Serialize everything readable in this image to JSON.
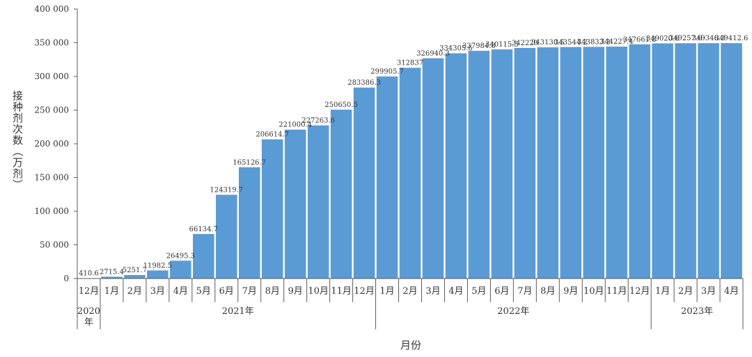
{
  "chart_data": {
    "type": "bar",
    "title": "",
    "ylabel": "接种剂次数（万剂）",
    "xlabel": "月份",
    "ylim": [
      0,
      400000
    ],
    "yticks": [
      "0",
      "50 000",
      "100 000",
      "150 000",
      "200 000",
      "250 000",
      "300 000",
      "350 000",
      "400 000"
    ],
    "categories": [
      "12月",
      "1月",
      "2月",
      "3月",
      "4月",
      "5月",
      "6月",
      "7月",
      "8月",
      "9月",
      "10月",
      "11月",
      "12月",
      "1月",
      "2月",
      "3月",
      "4月",
      "5月",
      "6月",
      "7月",
      "8月",
      "9月",
      "10月",
      "11月",
      "12月",
      "1月",
      "2月",
      "3月",
      "4月"
    ],
    "years": [
      {
        "label": "2020年",
        "start": 0,
        "end": 0
      },
      {
        "label": "2021年",
        "start": 1,
        "end": 12
      },
      {
        "label": "2022年",
        "start": 13,
        "end": 24
      },
      {
        "label": "2023年",
        "start": 25,
        "end": 28
      }
    ],
    "values": [
      410.6,
      2715.4,
      5251.7,
      11982.5,
      26495.3,
      66134.7,
      124319.7,
      165126.7,
      206614.7,
      221000.4,
      227263.6,
      250650.5,
      283386.3,
      299905.7,
      312837,
      326940.3,
      334305.6,
      337984.8,
      340115.5,
      342220,
      343130.5,
      343544.2,
      343833.2,
      344227.4,
      347661.8,
      349020.6,
      349257.6,
      349346.3,
      349412.6
    ],
    "value_labels": [
      "410.6",
      "2715.4",
      "5251.7",
      "11982.5",
      "26495.3",
      "66134.7",
      "124319.7",
      "165126.7",
      "206614.7",
      "221000.4",
      "227263.6",
      "250650.5",
      "283386.3",
      "299905.7",
      "312837",
      "326940.3",
      "334305.6",
      "337984.8",
      "340115.5",
      "342220",
      "343130.5",
      "343544.2",
      "343833.2",
      "344227.4",
      "347661.8",
      "349020.6",
      "349257.6",
      "349346.3",
      "349412.6"
    ],
    "bar_color": "#5b9bd5",
    "grid": false,
    "legend": "none"
  }
}
